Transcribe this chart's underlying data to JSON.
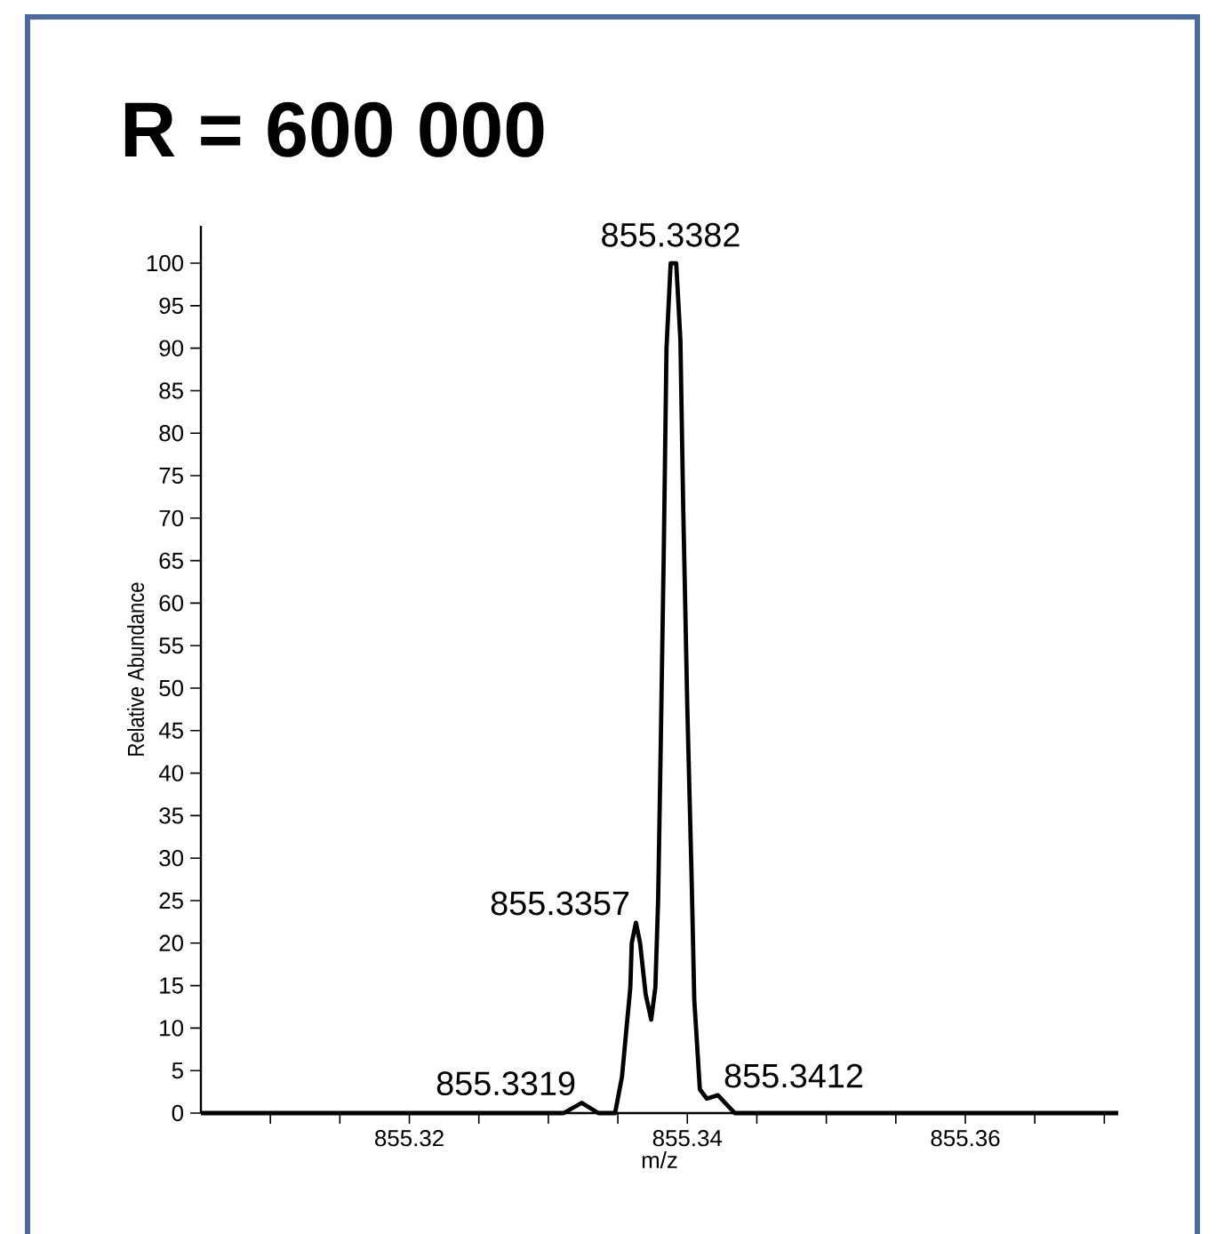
{
  "chart_data": {
    "type": "line",
    "title": "R = 600 000",
    "xlabel": "m/z",
    "ylabel": "Relative Abundance",
    "xlim": [
      855.305,
      855.371
    ],
    "ylim": [
      0,
      104.4
    ],
    "xticks": [
      {
        "value": 855.31,
        "label": null
      },
      {
        "value": 855.315,
        "label": null
      },
      855.32,
      {
        "value": 855.325,
        "label": null
      },
      {
        "value": 855.33,
        "label": null
      },
      {
        "value": 855.335,
        "label": null
      },
      855.34,
      {
        "value": 855.345,
        "label": null
      },
      {
        "value": 855.35,
        "label": null
      },
      {
        "value": 855.355,
        "label": null
      },
      855.36,
      {
        "value": 855.365,
        "label": null
      },
      {
        "value": 855.37,
        "label": null
      }
    ],
    "yticks": [
      0,
      5,
      10,
      15,
      20,
      25,
      30,
      35,
      40,
      45,
      50,
      55,
      60,
      65,
      70,
      75,
      80,
      85,
      90,
      95,
      100
    ],
    "line_style": "solid",
    "x": [
      855.305,
      855.3311,
      855.3324,
      855.3336,
      855.3348,
      855.3353,
      855.3356,
      855.3359,
      855.336,
      855.3363,
      855.3366,
      855.337,
      855.3374,
      855.3377,
      855.3379,
      855.3381,
      855.3383,
      855.3385,
      855.3388,
      855.3392,
      855.3395,
      855.3397,
      855.34,
      855.3403,
      855.3405,
      855.3409,
      855.3414,
      855.3422,
      855.3434,
      855.371
    ],
    "series": [
      {
        "color": "#000000",
        "values": [
          0,
          0,
          1.2,
          0,
          0,
          4.3,
          9.6,
          14.8,
          20,
          22.4,
          20,
          14,
          11,
          14.8,
          25.2,
          44.6,
          65.5,
          90,
          100,
          100,
          91,
          71.5,
          47.6,
          28.2,
          13.3,
          2.8,
          1.7,
          2.1,
          0,
          0
        ]
      }
    ],
    "annotations": [
      {
        "text": "855.3382",
        "x": 855.3388,
        "y": 100
      },
      {
        "text": "855.3357",
        "x": 855.3363,
        "y": 22.4
      },
      {
        "text": "855.3319",
        "x": 855.3324,
        "y": 1.2
      },
      {
        "text": "855.3412",
        "x": 855.3422,
        "y": 2.1
      }
    ]
  }
}
